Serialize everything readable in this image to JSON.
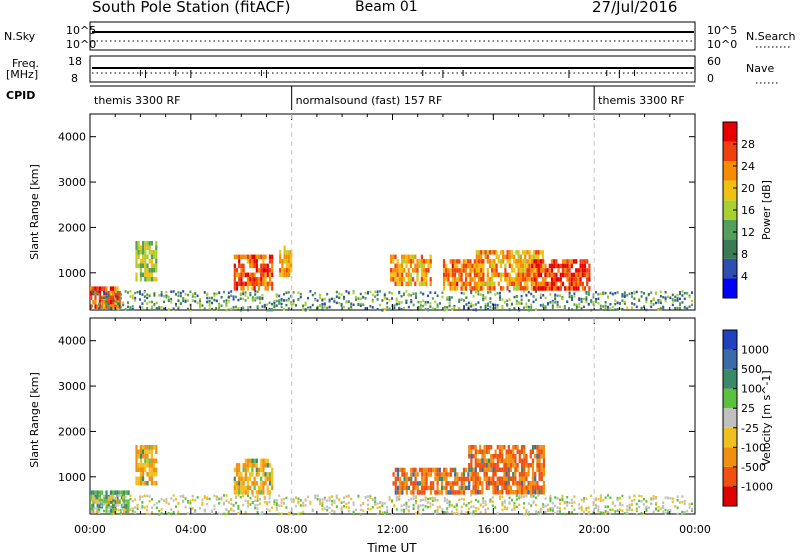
{
  "header": {
    "station": "South Pole Station (fitACF)",
    "beam": "Beam 01",
    "date": "27/Jul/2016"
  },
  "top_panels": {
    "nsky_label": "N.Sky",
    "nsky_ticks": [
      "10^5",
      "10^0"
    ],
    "nsearch_label": "N.Search",
    "nsearch_ticks": [
      "10^5",
      "10^0"
    ],
    "freq_label": "Freq.",
    "freq_unit": "[MHz]",
    "freq_ticks": [
      "18",
      "8"
    ],
    "nave_label": "Nave",
    "nave_ticks": [
      "60",
      "0"
    ],
    "cpid_label": "CPID",
    "cpid_segments": [
      {
        "label": "themis 3300 RF",
        "start_hour": 0,
        "end_hour": 8
      },
      {
        "label": "normalsound (fast) 157 RF",
        "start_hour": 8,
        "end_hour": 20
      },
      {
        "label": "themis 3300 RF",
        "start_hour": 20,
        "end_hour": 24
      }
    ]
  },
  "colors": {
    "power": [
      "#0000ff",
      "#2f4fb0",
      "#3a7a55",
      "#52a05a",
      "#a8d030",
      "#f0c010",
      "#f88c00",
      "#f04010",
      "#e80000"
    ],
    "velocity": [
      "#2040c0",
      "#3a6aa8",
      "#3a8a6a",
      "#5cc040",
      "#c0c0c0",
      "#f0c020",
      "#f09010",
      "#f05010",
      "#e00000"
    ]
  },
  "chart_data": [
    {
      "type": "heatmap",
      "title": "Power",
      "ylabel": "Slant Range [km]",
      "xlim": [
        0,
        24
      ],
      "ylim": [
        180,
        4500
      ],
      "yticks": [
        "1000",
        "2000",
        "3000",
        "4000"
      ],
      "colorbar_label": "Power [dB]",
      "colorbar_ticks": [
        "4",
        "8",
        "12",
        "16",
        "20",
        "24",
        "28"
      ],
      "colorbar_range": [
        0,
        32
      ],
      "regions": [
        {
          "t0": 0.0,
          "t1": 1.2,
          "r0": 220,
          "r1": 700,
          "value": 26
        },
        {
          "t0": 1.8,
          "t1": 2.6,
          "r0": 900,
          "r1": 1700,
          "value": 16
        },
        {
          "t0": 5.7,
          "t1": 7.2,
          "r0": 700,
          "r1": 1400,
          "value": 26
        },
        {
          "t0": 7.5,
          "t1": 8.0,
          "r0": 1000,
          "r1": 1600,
          "value": 20
        },
        {
          "t0": 11.9,
          "t1": 13.5,
          "r0": 800,
          "r1": 1400,
          "value": 22
        },
        {
          "t0": 14.0,
          "t1": 15.5,
          "r0": 700,
          "r1": 1300,
          "value": 24
        },
        {
          "t0": 15.3,
          "t1": 18.0,
          "r0": 700,
          "r1": 1500,
          "value": 22
        },
        {
          "t0": 17.5,
          "t1": 19.8,
          "r0": 700,
          "r1": 1300,
          "value": 27
        }
      ]
    },
    {
      "type": "heatmap",
      "title": "Velocity",
      "ylabel": "Slant Range [km]",
      "xlabel": "Time UT",
      "xlim": [
        0,
        24
      ],
      "xticks": [
        "00:00",
        "04:00",
        "08:00",
        "12:00",
        "16:00",
        "20:00",
        "00:00"
      ],
      "ylim": [
        180,
        4500
      ],
      "yticks": [
        "1000",
        "2000",
        "3000",
        "4000"
      ],
      "colorbar_label": "Velocity [m s^-1]",
      "colorbar_ticks": [
        "1000",
        "500",
        "100",
        "25",
        "-25",
        "-100",
        "-500",
        "-1000"
      ],
      "regions": [
        {
          "t0": 0.0,
          "t1": 1.5,
          "r0": 250,
          "r1": 700,
          "value": 100
        },
        {
          "t0": 1.8,
          "t1": 2.6,
          "r0": 900,
          "r1": 1700,
          "value": -100
        },
        {
          "t0": 5.7,
          "t1": 7.2,
          "r0": 700,
          "r1": 1400,
          "value": -100
        },
        {
          "t0": 12.0,
          "t1": 15.0,
          "r0": 700,
          "r1": 1200,
          "value": -500
        },
        {
          "t0": 15.0,
          "t1": 18.0,
          "r0": 700,
          "r1": 1700,
          "value": -500
        }
      ]
    }
  ]
}
